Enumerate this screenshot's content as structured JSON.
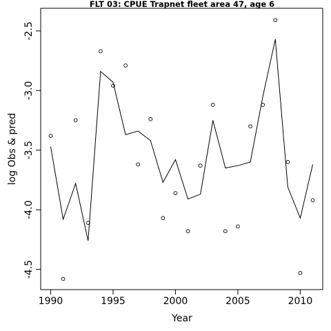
{
  "chart_data": {
    "type": "line",
    "title": "FLT 03: CPUE Trapnet fleet area 47, age 6",
    "xlabel": "Year",
    "ylabel": "log Obs & pred",
    "xlim": [
      1989.2,
      2011.8
    ],
    "ylim": [
      -4.67,
      -2.31
    ],
    "xticks": [
      1990,
      1995,
      2000,
      2005,
      2010
    ],
    "xtick_labels": [
      "1990",
      "1995",
      "2000",
      "2005",
      "2010"
    ],
    "yticks": [
      -2.5,
      -3.0,
      -3.5,
      -4.0,
      -4.5
    ],
    "ytick_labels": [
      "-2.5",
      "-3.0",
      "-3.5",
      "-4.0",
      "-4.5"
    ],
    "grid": false,
    "series": [
      {
        "style": "points",
        "x": [
          1990,
          1991,
          1992,
          1993,
          1994,
          1995,
          1996,
          1997,
          1998,
          1999,
          2000,
          2001,
          2002,
          2003,
          2004,
          2005,
          2006,
          2007,
          2008,
          2009,
          2010,
          2011
        ],
        "y": [
          -3.38,
          -4.58,
          -3.25,
          -4.11,
          -2.67,
          -2.96,
          -2.79,
          -3.62,
          -3.24,
          -4.07,
          -3.86,
          -4.18,
          -3.63,
          -3.12,
          -4.18,
          -4.14,
          -3.3,
          -3.12,
          -2.41,
          -3.6,
          -4.53,
          -3.92
        ]
      },
      {
        "style": "line",
        "x": [
          1990,
          1991,
          1992,
          1993,
          1994,
          1995,
          1996,
          1997,
          1998,
          1999,
          2000,
          2001,
          2002,
          2003,
          2004,
          2005,
          2006,
          2007,
          2008,
          2009,
          2010,
          2011
        ],
        "y": [
          -3.47,
          -4.08,
          -3.78,
          -4.26,
          -2.84,
          -2.93,
          -3.37,
          -3.34,
          -3.42,
          -3.77,
          -3.58,
          -3.91,
          -3.87,
          -3.25,
          -3.65,
          -3.63,
          -3.6,
          -3.05,
          -2.57,
          -3.81,
          -4.07,
          -3.62
        ]
      }
    ]
  }
}
